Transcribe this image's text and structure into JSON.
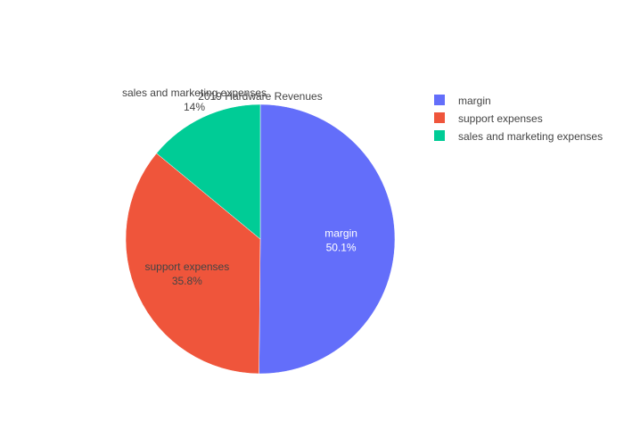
{
  "chart_data": {
    "type": "pie",
    "title": "2019 Hardware Revenues",
    "slices": [
      {
        "label": "margin",
        "value": 50.1,
        "percent_label": "50.1%",
        "color": "#636efa",
        "text_color": "#ffffff"
      },
      {
        "label": "support expenses",
        "value": 35.8,
        "percent_label": "35.8%",
        "color": "#ef553b",
        "text_color": "#444444"
      },
      {
        "label": "sales and marketing expenses",
        "value": 14,
        "percent_label": "14%",
        "color": "#00cc96",
        "text_color": "#444444"
      }
    ],
    "legend": {
      "position": "top-right",
      "items": [
        "margin",
        "support expenses",
        "sales and marketing expenses"
      ]
    },
    "direction": "clockwise",
    "start": "top"
  }
}
